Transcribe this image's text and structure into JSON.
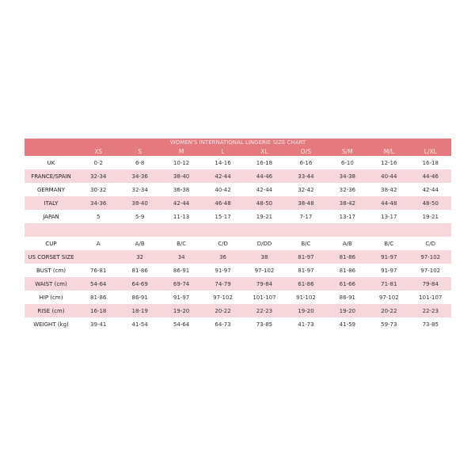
{
  "title": "WOMEN'S INTERNATIONAL LINGERIE SIZE CHART",
  "colors": {
    "header": "#e47a7e",
    "stripe": "#f8d7dc"
  },
  "sizes": [
    "XS",
    "S",
    "M",
    "L",
    "XL",
    "O/S",
    "S/M",
    "M/L",
    "L/XL"
  ],
  "rows": [
    {
      "label": "UK",
      "values": [
        "0-2",
        "6-8",
        "10-12",
        "14-16",
        "16-18",
        "6-16",
        "6-10",
        "12-16",
        "16-18"
      ]
    },
    {
      "label": "FRANCE/SPAIN",
      "values": [
        "32-34",
        "34-36",
        "38-40",
        "42-44",
        "44-46",
        "33-44",
        "34-38",
        "40-44",
        "44-46"
      ]
    },
    {
      "label": "GERMANY",
      "values": [
        "30-32",
        "32-34",
        "36-38",
        "40-42",
        "42-44",
        "32-42",
        "32-36",
        "38-42",
        "42-44"
      ]
    },
    {
      "label": "ITALY",
      "values": [
        "34-36",
        "38-40",
        "42-44",
        "46-48",
        "48-50",
        "38-48",
        "38-42",
        "44-48",
        "48-50"
      ]
    },
    {
      "label": "JAPAN",
      "values": [
        "5",
        "5-9",
        "11-13",
        "15-17",
        "19-21",
        "7-17",
        "13-17",
        "13-17",
        "19-21"
      ]
    },
    {
      "label": "",
      "values": [
        "",
        "",
        "",
        "",
        "",
        "",
        "",
        "",
        ""
      ]
    },
    {
      "label": "CUP",
      "values": [
        "A",
        "A/B",
        "B/C",
        "C/D",
        "D/DD",
        "B/C",
        "A/B",
        "B/C",
        "C/D"
      ]
    },
    {
      "label": "US CORSET SIZE",
      "values": [
        "",
        "32",
        "34",
        "36",
        "38",
        "81-97",
        "81-86",
        "91-97",
        "97-102"
      ]
    },
    {
      "label": "BUST (cm)",
      "values": [
        "76-81",
        "81-86",
        "86-91",
        "91-97",
        "97-102",
        "81-97",
        "81-86",
        "91-97",
        "97-102"
      ]
    },
    {
      "label": "WAIST (cm)",
      "values": [
        "54-64",
        "64-69",
        "69-74",
        "74-79",
        "79-84",
        "61-86",
        "61-66",
        "71-81",
        "79-84"
      ]
    },
    {
      "label": "HIP (cm)",
      "values": [
        "81-86",
        "86-91",
        "91-97",
        "97-102",
        "101-107",
        "91-102",
        "86-91",
        "97-102",
        "101-107"
      ]
    },
    {
      "label": "RISE (cm)",
      "values": [
        "16-18",
        "18-19",
        "19-20",
        "20-22",
        "22-23",
        "19-20",
        "19-20",
        "20-22",
        "22-23"
      ]
    },
    {
      "label": "WEIGHT (kg)",
      "values": [
        "39-41",
        "41-54",
        "54-64",
        "64-73",
        "73-85",
        "41-73",
        "41-59",
        "59-73",
        "73-85"
      ]
    }
  ]
}
